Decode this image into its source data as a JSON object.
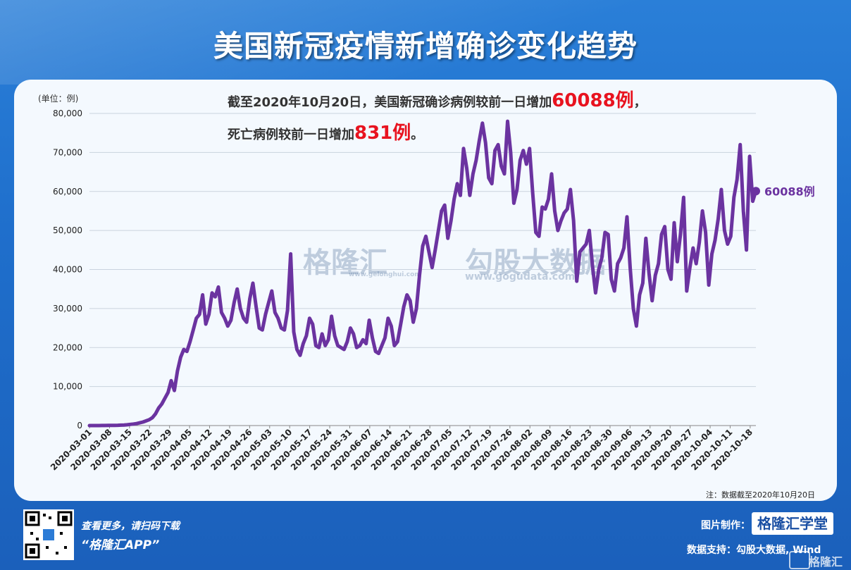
{
  "title": "美国新冠疫情新增确诊变化趋势",
  "headline": {
    "line1_prefix": "截至2020年10月20日，美国新冠确诊病例较前一日增加",
    "line1_value": "60088例",
    "line1_suffix": "，",
    "line2_prefix": "死亡病例较前一日增加",
    "line2_value": "831例",
    "line2_suffix": "。"
  },
  "unit_label": "(单位：例)",
  "note": "注：数据截至2020年10月20日",
  "end_label": "60088例",
  "watermark": {
    "brand1": "格隆汇",
    "brand1_url": "www.gelonghui.com",
    "brand2": "勾股大数据",
    "brand2_url": "www.gogudata.com"
  },
  "footer": {
    "promo1": "查看更多，请扫码下载",
    "promo2": "“格隆汇APP”",
    "made_by_label": "图片制作：",
    "made_by_brand": "格隆汇学堂",
    "data_support": "数据支持：勾股大数据, Wind",
    "corner_brand": "格隆汇"
  },
  "colors": {
    "line": "#6b33a0",
    "accent": "#e8131f",
    "background": "#1f6fcc"
  },
  "chart_data": {
    "type": "line",
    "x_start": "2020-03-01",
    "x_end": "2020-10-20",
    "x_tick_labels": [
      "2020-03-01",
      "2020-03-08",
      "2020-03-15",
      "2020-03-22",
      "2020-03-29",
      "2020-04-05",
      "2020-04-12",
      "2020-04-19",
      "2020-04-26",
      "2020-05-03",
      "2020-05-10",
      "2020-05-17",
      "2020-05-24",
      "2020-05-31",
      "2020-06-07",
      "2020-06-14",
      "2020-06-21",
      "2020-06-28",
      "2020-07-05",
      "2020-07-12",
      "2020-07-19",
      "2020-07-26",
      "2020-08-02",
      "2020-08-09",
      "2020-08-16",
      "2020-08-23",
      "2020-08-30",
      "2020-09-06",
      "2020-09-13",
      "2020-09-20",
      "2020-09-27",
      "2020-10-04",
      "2020-10-11",
      "2020-10-18"
    ],
    "y_tick_labels": [
      "0",
      "10,000",
      "20,000",
      "30,000",
      "40,000",
      "50,000",
      "60,000",
      "70,000",
      "80,000"
    ],
    "ylim": [
      0,
      80000
    ],
    "grid": true,
    "series": [
      {
        "values": [
          0,
          0,
          0,
          0,
          10,
          20,
          30,
          40,
          60,
          80,
          100,
          150,
          200,
          300,
          400,
          500,
          700,
          900,
          1200,
          1500,
          2000,
          3000,
          4500,
          5500,
          7000,
          8500,
          11500,
          9000,
          14000,
          17500,
          19500,
          19000,
          21500,
          24500,
          27500,
          28500,
          33500,
          26000,
          28500,
          34000,
          33000,
          35500,
          29000,
          27500,
          25500,
          27000,
          31500,
          35000,
          30000,
          27500,
          26500,
          32500,
          36500,
          30500,
          25000,
          24500,
          28500,
          31500,
          34500,
          29000,
          27500,
          25000,
          24500,
          29500,
          44000,
          24000,
          19500,
          18000,
          21000,
          23000,
          27500,
          26000,
          20500,
          20000,
          23500,
          20500,
          22000,
          28000,
          23000,
          20500,
          20000,
          19500,
          21500,
          25000,
          23500,
          20000,
          20500,
          22000,
          21000,
          27000,
          22500,
          19000,
          18500,
          20500,
          22500,
          27500,
          25500,
          20500,
          21500,
          26000,
          30500,
          33500,
          32000,
          26500,
          30000,
          38500,
          46000,
          48500,
          44500,
          40500,
          45000,
          50000,
          55000,
          56500,
          48000,
          52500,
          58000,
          62000,
          59000,
          71000,
          66000,
          59000,
          64500,
          68000,
          73000,
          77500,
          72500,
          63500,
          62000,
          70500,
          72000,
          66500,
          64500,
          78000,
          70000,
          57000,
          60500,
          68000,
          70500,
          67000,
          71000,
          59500,
          49500,
          48500,
          56000,
          55500,
          58000,
          64500,
          55000,
          50000,
          52500,
          54500,
          55500,
          60500,
          52500,
          37000,
          44500,
          45500,
          46500,
          50000,
          41000,
          34000,
          40000,
          43000,
          49500,
          49000,
          37500,
          34500,
          41500,
          43000,
          45500,
          53500,
          40500,
          30000,
          25500,
          33500,
          36500,
          48000,
          39000,
          32000,
          38500,
          41500,
          49000,
          51000,
          40000,
          37500,
          52000,
          42000,
          49000,
          58500,
          34500,
          40500,
          45500,
          41500,
          47000,
          55000,
          49500,
          36000,
          44000,
          47500,
          53000,
          60500,
          50000,
          46500,
          48500,
          58500,
          63000,
          72000,
          55000,
          45000,
          69000,
          57500,
          60088
        ]
      }
    ],
    "end_label": "60088例"
  }
}
